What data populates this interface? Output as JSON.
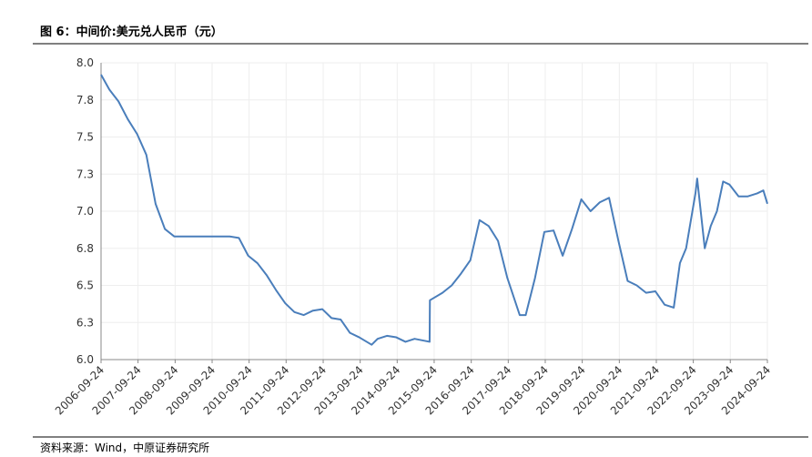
{
  "chart_data": {
    "type": "line",
    "title": "图 6：中间价:美元兑人民币（元）",
    "source": "资料来源：Wind，中原证券研究所",
    "x": [
      "2006-09-24",
      "2006-12-15",
      "2007-03-15",
      "2007-06-15",
      "2007-09-15",
      "2007-12-15",
      "2008-03-15",
      "2008-06-15",
      "2008-09-15",
      "2008-12-15",
      "2009-06-15",
      "2010-03-15",
      "2010-06-15",
      "2010-09-15",
      "2010-12-15",
      "2011-03-15",
      "2011-06-15",
      "2011-09-15",
      "2011-12-15",
      "2012-03-15",
      "2012-06-15",
      "2012-09-15",
      "2012-12-15",
      "2013-03-15",
      "2013-06-15",
      "2013-09-15",
      "2014-01-15",
      "2014-03-15",
      "2014-06-15",
      "2014-09-15",
      "2014-12-15",
      "2015-03-15",
      "2015-08-10",
      "2015-08-13",
      "2015-12-15",
      "2016-03-15",
      "2016-06-15",
      "2016-09-15",
      "2016-12-15",
      "2017-03-15",
      "2017-06-15",
      "2017-09-15",
      "2018-01-15",
      "2018-03-15",
      "2018-06-15",
      "2018-09-15",
      "2018-12-15",
      "2019-03-15",
      "2019-06-15",
      "2019-09-15",
      "2019-12-15",
      "2020-03-15",
      "2020-06-15",
      "2020-09-15",
      "2020-12-15",
      "2021-03-15",
      "2021-06-15",
      "2021-09-15",
      "2021-12-15",
      "2022-03-15",
      "2022-05-15",
      "2022-07-15",
      "2022-10-15",
      "2022-11-01",
      "2023-01-15",
      "2023-03-15",
      "2023-05-15",
      "2023-07-15",
      "2023-09-15",
      "2023-12-15",
      "2024-03-15",
      "2024-06-15",
      "2024-08-15",
      "2024-09-24"
    ],
    "series": [
      {
        "name": "中间价:美元兑人民币",
        "color": "#4a7ebb",
        "values": [
          7.92,
          7.82,
          7.74,
          7.62,
          7.52,
          7.38,
          7.05,
          6.88,
          6.83,
          6.83,
          6.83,
          6.83,
          6.82,
          6.7,
          6.65,
          6.57,
          6.47,
          6.38,
          6.32,
          6.3,
          6.33,
          6.34,
          6.28,
          6.27,
          6.18,
          6.15,
          6.1,
          6.14,
          6.16,
          6.15,
          6.12,
          6.14,
          6.12,
          6.4,
          6.45,
          6.5,
          6.58,
          6.67,
          6.94,
          6.9,
          6.8,
          6.55,
          6.3,
          6.3,
          6.55,
          6.86,
          6.87,
          6.7,
          6.88,
          7.08,
          7.0,
          7.06,
          7.09,
          6.8,
          6.53,
          6.5,
          6.45,
          6.46,
          6.37,
          6.35,
          6.65,
          6.75,
          7.12,
          7.22,
          6.75,
          6.9,
          7.0,
          7.2,
          7.18,
          7.1,
          7.1,
          7.12,
          7.14,
          7.05
        ]
      }
    ],
    "xlim": [
      "2006-09-24",
      "2024-09-24"
    ],
    "xticks": [
      "2006-09-24",
      "2007-09-24",
      "2008-09-24",
      "2009-09-24",
      "2010-09-24",
      "2011-09-24",
      "2012-09-24",
      "2013-09-24",
      "2014-09-24",
      "2015-09-24",
      "2016-09-24",
      "2017-09-24",
      "2018-09-24",
      "2019-09-24",
      "2020-09-24",
      "2021-09-24",
      "2022-09-24",
      "2023-09-24",
      "2024-09-24"
    ],
    "ylim": [
      6,
      8
    ],
    "yticks": [
      {
        "value": 6,
        "label": "6.0"
      },
      {
        "value": 6.25,
        "label": "6.3"
      },
      {
        "value": 6.5,
        "label": "6.5"
      },
      {
        "value": 6.75,
        "label": "6.8"
      },
      {
        "value": 7,
        "label": "7.0"
      },
      {
        "value": 7.25,
        "label": "7.3"
      },
      {
        "value": 7.5,
        "label": "7.5"
      },
      {
        "value": 7.75,
        "label": "7.8"
      },
      {
        "value": 8,
        "label": "8.0"
      }
    ],
    "grid": true
  }
}
